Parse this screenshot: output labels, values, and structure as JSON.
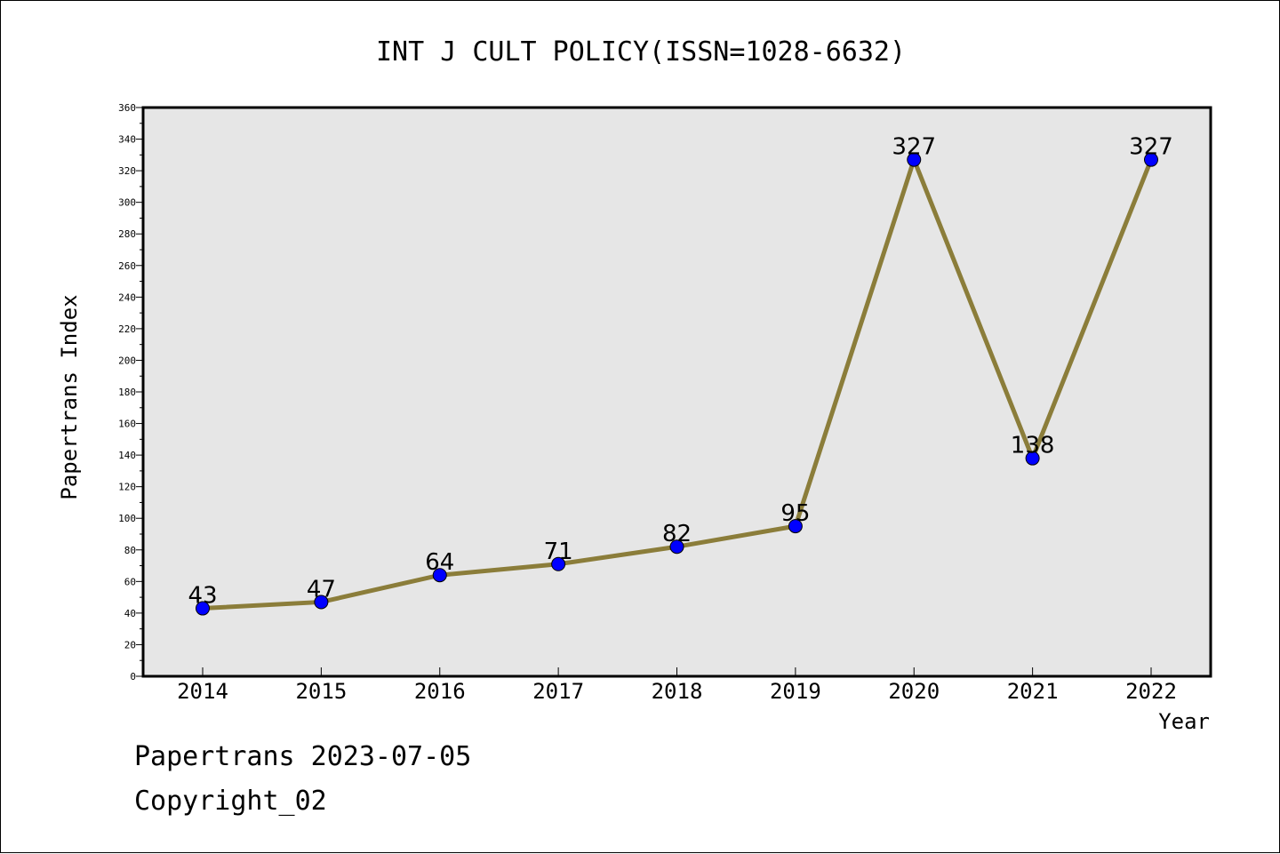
{
  "chart_data": {
    "type": "line",
    "title": "INT J CULT POLICY(ISSN=1028-6632)",
    "xlabel": "Year",
    "ylabel": "Papertrans Index",
    "categories": [
      "2014",
      "2015",
      "2016",
      "2017",
      "2018",
      "2019",
      "2020",
      "2021",
      "2022"
    ],
    "series": [
      {
        "values": [
          43,
          47,
          64,
          71,
          82,
          95,
          327,
          138,
          327
        ]
      }
    ],
    "data_labels": [
      "43",
      "47",
      "64",
      "71",
      "82",
      "95",
      "327",
      "138",
      "327"
    ],
    "ylim": [
      0,
      360
    ],
    "yticks": [
      "0",
      "20",
      "40",
      "60",
      "80",
      "100",
      "120",
      "140",
      "160",
      "180",
      "200",
      "220",
      "240",
      "260",
      "280",
      "300",
      "320",
      "340",
      "360"
    ],
    "grid": false,
    "line_color": "#8B7D3A",
    "marker_color": "#0000FF",
    "plot_background": "#E6E6E6"
  },
  "footer": {
    "date_text": "Papertrans 2023-07-05",
    "copyright_text": "Copyright_02"
  }
}
